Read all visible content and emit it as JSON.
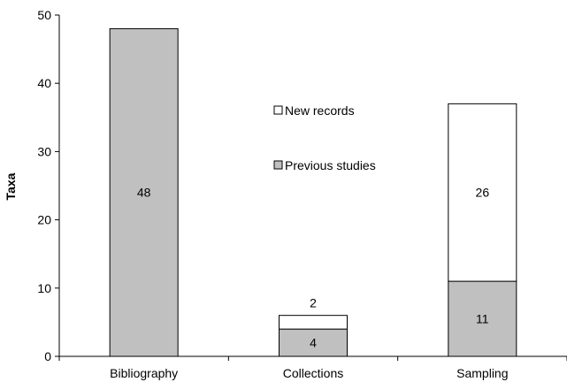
{
  "chart_data": {
    "type": "bar",
    "stacked": true,
    "categories": [
      "Bibliography",
      "Collections",
      "Sampling"
    ],
    "series": [
      {
        "name": "Previous studies",
        "values": [
          48,
          4,
          11
        ],
        "color": "#c0c0c0"
      },
      {
        "name": "New records",
        "values": [
          0,
          2,
          26
        ],
        "color": "#ffffff"
      }
    ],
    "data_labels": [
      {
        "category": "Bibliography",
        "series": "Previous studies",
        "text": "48"
      },
      {
        "category": "Collections",
        "series": "Previous studies",
        "text": "4"
      },
      {
        "category": "Collections",
        "series": "New records",
        "text": "2"
      },
      {
        "category": "Sampling",
        "series": "Previous studies",
        "text": "11"
      },
      {
        "category": "Sampling",
        "series": "New records",
        "text": "26"
      }
    ],
    "ylabel": "Taxa",
    "xlabel": "",
    "ylim": [
      0,
      50
    ],
    "yticks": [
      "0",
      "10",
      "20",
      "30",
      "40",
      "50"
    ],
    "grid": false,
    "legend": {
      "placement": "center",
      "entries": [
        "New records",
        "Previous studies"
      ]
    }
  }
}
